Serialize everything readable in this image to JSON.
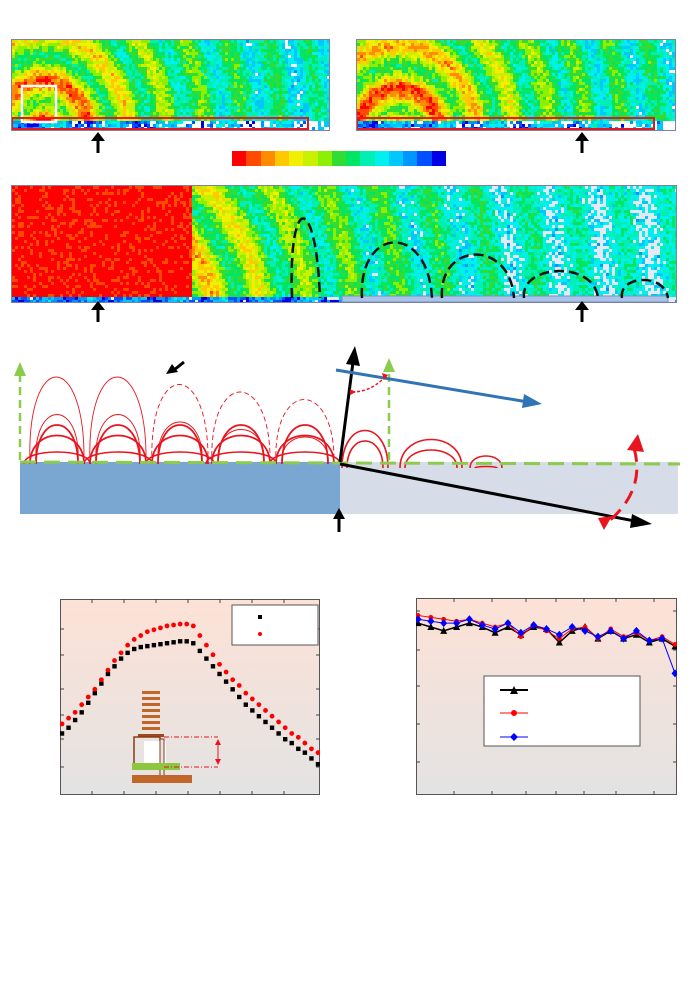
{
  "colorbar": {
    "colors": [
      "#ff0000",
      "#ff4a00",
      "#ff8c00",
      "#ffc800",
      "#f0f000",
      "#c8f000",
      "#8cf000",
      "#32dc32",
      "#00e664",
      "#00f0b4",
      "#00f0f0",
      "#00c8ff",
      "#0096ff",
      "#0050ff",
      "#0000e6"
    ]
  },
  "panels": {
    "top_left": {
      "field": "wave-field",
      "arrow": "up-arrow"
    },
    "top_right": {
      "field": "wave-field",
      "arrow": "up-arrow"
    },
    "wide": {
      "field": "wave-field",
      "arrows": [
        "up-arrow",
        "up-arrow"
      ]
    }
  },
  "schematic": {
    "colors": {
      "substrate_left": "#7aa6d2",
      "substrate_right": "#d6dde8",
      "contour": "#e8141e",
      "ray": "#2f74b5",
      "dashed": "#8ccc4c"
    }
  },
  "chart_data": [
    {
      "type": "scatter",
      "series": [
        {
          "marker": "square",
          "color": "#000000",
          "x": [
            0,
            1,
            2,
            3,
            4,
            5,
            6,
            7,
            8,
            9,
            10,
            11,
            12,
            13,
            14,
            15,
            16,
            17,
            18,
            19,
            20,
            21,
            22,
            23,
            24,
            25,
            26,
            27,
            28,
            29,
            30,
            31,
            32,
            33,
            34,
            35,
            36,
            37,
            38,
            39
          ],
          "y": [
            0.31,
            0.34,
            0.38,
            0.42,
            0.47,
            0.52,
            0.57,
            0.62,
            0.66,
            0.7,
            0.73,
            0.75,
            0.76,
            0.765,
            0.77,
            0.775,
            0.78,
            0.785,
            0.79,
            0.79,
            0.78,
            0.74,
            0.7,
            0.66,
            0.62,
            0.58,
            0.54,
            0.5,
            0.46,
            0.43,
            0.4,
            0.37,
            0.34,
            0.31,
            0.28,
            0.26,
            0.23,
            0.21,
            0.18,
            0.15
          ]
        },
        {
          "marker": "circle",
          "color": "#ff0000",
          "x": [
            0,
            1,
            2,
            3,
            4,
            5,
            6,
            7,
            8,
            9,
            10,
            11,
            12,
            13,
            14,
            15,
            16,
            17,
            18,
            19,
            20,
            21,
            22,
            23,
            24,
            25,
            26,
            27,
            28,
            29,
            30,
            31,
            32,
            33,
            34,
            35,
            36,
            37,
            38,
            39
          ],
          "y": [
            0.36,
            0.39,
            0.42,
            0.46,
            0.5,
            0.54,
            0.59,
            0.64,
            0.69,
            0.73,
            0.77,
            0.8,
            0.82,
            0.84,
            0.85,
            0.86,
            0.87,
            0.875,
            0.88,
            0.88,
            0.87,
            0.82,
            0.77,
            0.72,
            0.67,
            0.63,
            0.59,
            0.56,
            0.52,
            0.49,
            0.46,
            0.43,
            0.4,
            0.37,
            0.34,
            0.31,
            0.29,
            0.26,
            0.23,
            0.21
          ]
        }
      ],
      "xlim": [
        0,
        39
      ],
      "ylim": [
        0,
        1
      ]
    },
    {
      "type": "line",
      "series": [
        {
          "marker": "triangle",
          "color": "#000000",
          "x": [
            0,
            1,
            2,
            3,
            4,
            5,
            6,
            7,
            8,
            9,
            10,
            11,
            12,
            13,
            14,
            15,
            16,
            17,
            18,
            19,
            20
          ],
          "y": [
            0.88,
            0.86,
            0.84,
            0.86,
            0.88,
            0.86,
            0.83,
            0.86,
            0.82,
            0.86,
            0.85,
            0.78,
            0.84,
            0.86,
            0.8,
            0.84,
            0.8,
            0.82,
            0.78,
            0.8,
            0.76
          ]
        },
        {
          "marker": "circle",
          "color": "#ff0000",
          "x": [
            0,
            1,
            2,
            3,
            4,
            5,
            6,
            7,
            8,
            9,
            10,
            11,
            12,
            13,
            14,
            15,
            16,
            17,
            18,
            19,
            20
          ],
          "y": [
            0.92,
            0.91,
            0.9,
            0.89,
            0.9,
            0.88,
            0.86,
            0.88,
            0.81,
            0.87,
            0.84,
            0.8,
            0.85,
            0.86,
            0.8,
            0.85,
            0.81,
            0.83,
            0.79,
            0.81,
            0.77
          ]
        },
        {
          "marker": "diamond",
          "color": "#0000ff",
          "x": [
            0,
            1,
            2,
            3,
            4,
            5,
            6,
            7,
            8,
            9,
            10,
            11,
            12,
            13,
            14,
            15,
            16,
            17,
            18,
            19,
            20
          ],
          "y": [
            0.9,
            0.89,
            0.88,
            0.88,
            0.9,
            0.87,
            0.85,
            0.88,
            0.83,
            0.87,
            0.85,
            0.82,
            0.86,
            0.84,
            0.81,
            0.84,
            0.8,
            0.84,
            0.79,
            0.8,
            0.62
          ]
        }
      ],
      "xlim": [
        0,
        20
      ],
      "ylim": [
        0,
        1
      ]
    }
  ]
}
